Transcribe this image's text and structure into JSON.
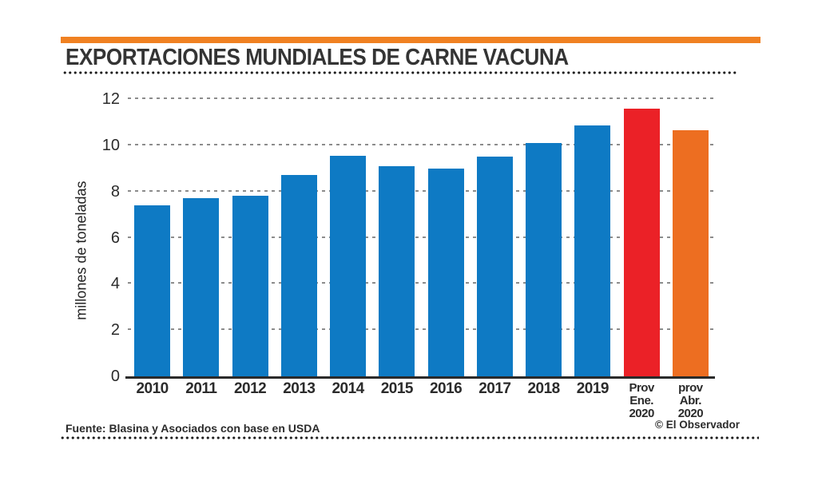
{
  "header": {
    "title": "EXPORTACIONES MUNDIALES DE CARNE VACUNA",
    "accent_color": "#F08122"
  },
  "chart_data": {
    "type": "bar",
    "title": "EXPORTACIONES MUNDIALES DE CARNE VACUNA",
    "ylabel": "millones de toneladas",
    "xlabel": "",
    "ylim": [
      0,
      12
    ],
    "y_ticks": [
      0,
      2,
      4,
      6,
      8,
      10,
      12
    ],
    "grid": "horizontal-dashed",
    "legend": "none",
    "categories": [
      "2010",
      "2011",
      "2012",
      "2013",
      "2014",
      "2015",
      "2016",
      "2017",
      "2018",
      "2019",
      "Prov Ene. 2020",
      "prov Abr. 2020"
    ],
    "x_tick_lines": [
      [
        "2010"
      ],
      [
        "2011"
      ],
      [
        "2012"
      ],
      [
        "2013"
      ],
      [
        "2014"
      ],
      [
        "2015"
      ],
      [
        "2016"
      ],
      [
        "2017"
      ],
      [
        "2018"
      ],
      [
        "2019"
      ],
      [
        "Prov",
        "Ene.",
        "2020"
      ],
      [
        "prov",
        "Abr.",
        "2020"
      ]
    ],
    "values": [
      7.4,
      7.7,
      7.8,
      8.7,
      9.55,
      9.1,
      9.0,
      9.5,
      10.1,
      10.85,
      11.6,
      10.65
    ],
    "bar_colors": [
      "#0E7AC4",
      "#0E7AC4",
      "#0E7AC4",
      "#0E7AC4",
      "#0E7AC4",
      "#0E7AC4",
      "#0E7AC4",
      "#0E7AC4",
      "#0E7AC4",
      "#0E7AC4",
      "#EB2127",
      "#ED6E21"
    ]
  },
  "footer": {
    "source": "Fuente: Blasina y Asociados con base en USDA",
    "credit": "© El Observador"
  }
}
